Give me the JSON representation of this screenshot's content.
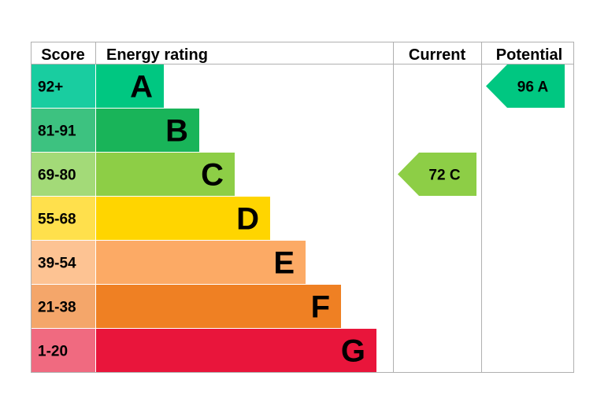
{
  "chart_data": {
    "type": "bar",
    "headers": {
      "score": "Score",
      "rating": "Energy rating",
      "current": "Current",
      "potential": "Potential"
    },
    "bands": [
      {
        "score": "92+",
        "letter": "A",
        "color": "#00c781",
        "score_bg": "#19cda0"
      },
      {
        "score": "81-91",
        "letter": "B",
        "color": "#19b459",
        "score_bg": "#3dc280"
      },
      {
        "score": "69-80",
        "letter": "C",
        "color": "#8dce46",
        "score_bg": "#a3da78"
      },
      {
        "score": "55-68",
        "letter": "D",
        "color": "#ffd500",
        "score_bg": "#ffe04c"
      },
      {
        "score": "39-54",
        "letter": "E",
        "color": "#fcaa65",
        "score_bg": "#fdc393"
      },
      {
        "score": "21-38",
        "letter": "F",
        "color": "#ef8023",
        "score_bg": "#f4a66a"
      },
      {
        "score": "1-20",
        "letter": "G",
        "color": "#e9153b",
        "score_bg": "#f06a80"
      }
    ],
    "current": {
      "value": 72,
      "letter": "C",
      "color": "#8dce46"
    },
    "potential": {
      "value": 96,
      "letter": "A",
      "color": "#00c781"
    }
  }
}
